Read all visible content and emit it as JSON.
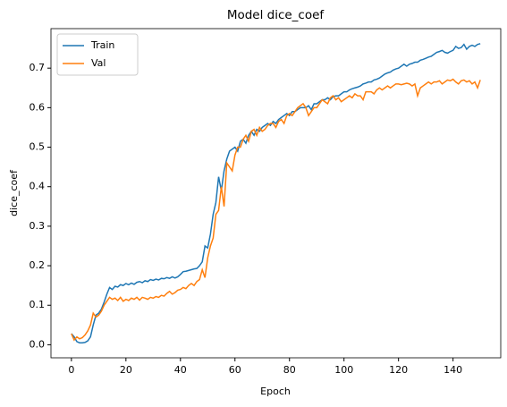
{
  "chart_data": {
    "type": "line",
    "title": "Model dice_coef",
    "xlabel": "Epoch",
    "ylabel": "dice_coef",
    "legend": "upper left",
    "x": [
      0,
      1,
      2,
      3,
      4,
      5,
      6,
      7,
      8,
      9,
      10,
      11,
      12,
      13,
      14,
      15,
      16,
      17,
      18,
      19,
      20,
      21,
      22,
      23,
      24,
      25,
      26,
      27,
      28,
      29,
      30,
      31,
      32,
      33,
      34,
      35,
      36,
      37,
      38,
      39,
      40,
      41,
      42,
      43,
      44,
      45,
      46,
      47,
      48,
      49,
      50,
      51,
      52,
      53,
      54,
      55,
      56,
      57,
      58,
      59,
      60,
      61,
      62,
      63,
      64,
      65,
      66,
      67,
      68,
      69,
      70,
      71,
      72,
      73,
      74,
      75,
      76,
      77,
      78,
      79,
      80,
      81,
      82,
      83,
      84,
      85,
      86,
      87,
      88,
      89,
      90,
      91,
      92,
      93,
      94,
      95,
      96,
      97,
      98,
      99,
      100,
      101,
      102,
      103,
      104,
      105,
      106,
      107,
      108,
      109,
      110,
      111,
      112,
      113,
      114,
      115,
      116,
      117,
      118,
      119,
      120,
      121,
      122,
      123,
      124,
      125,
      126,
      127,
      128,
      129,
      130,
      131,
      132,
      133,
      134,
      135,
      136,
      137,
      138,
      139,
      140,
      141,
      142,
      143,
      144,
      145,
      146,
      147,
      148,
      149,
      150
    ],
    "series": [
      {
        "name": "Train",
        "color": "#1f77b4",
        "values": [
          0.028,
          0.02,
          0.008,
          0.005,
          0.005,
          0.006,
          0.01,
          0.02,
          0.05,
          0.075,
          0.08,
          0.09,
          0.108,
          0.128,
          0.145,
          0.14,
          0.148,
          0.146,
          0.152,
          0.15,
          0.155,
          0.152,
          0.156,
          0.153,
          0.158,
          0.16,
          0.157,
          0.162,
          0.16,
          0.165,
          0.163,
          0.166,
          0.164,
          0.168,
          0.167,
          0.17,
          0.168,
          0.172,
          0.169,
          0.172,
          0.178,
          0.185,
          0.186,
          0.188,
          0.19,
          0.192,
          0.193,
          0.2,
          0.21,
          0.25,
          0.245,
          0.28,
          0.33,
          0.36,
          0.425,
          0.39,
          0.44,
          0.47,
          0.49,
          0.495,
          0.5,
          0.49,
          0.515,
          0.52,
          0.51,
          0.53,
          0.54,
          0.53,
          0.545,
          0.54,
          0.55,
          0.555,
          0.56,
          0.555,
          0.565,
          0.56,
          0.57,
          0.575,
          0.58,
          0.585,
          0.58,
          0.59,
          0.59,
          0.595,
          0.6,
          0.6,
          0.6,
          0.605,
          0.595,
          0.61,
          0.61,
          0.615,
          0.62,
          0.62,
          0.625,
          0.62,
          0.628,
          0.63,
          0.63,
          0.635,
          0.64,
          0.64,
          0.645,
          0.648,
          0.65,
          0.652,
          0.655,
          0.66,
          0.662,
          0.665,
          0.665,
          0.67,
          0.672,
          0.675,
          0.68,
          0.685,
          0.688,
          0.69,
          0.695,
          0.698,
          0.7,
          0.705,
          0.71,
          0.705,
          0.71,
          0.712,
          0.715,
          0.715,
          0.72,
          0.722,
          0.725,
          0.728,
          0.73,
          0.735,
          0.74,
          0.742,
          0.745,
          0.74,
          0.738,
          0.742,
          0.745,
          0.755,
          0.75,
          0.752,
          0.76,
          0.748,
          0.755,
          0.758,
          0.755,
          0.76,
          0.762
        ]
      },
      {
        "name": "Val",
        "color": "#ff7f0e",
        "values": [
          0.028,
          0.012,
          0.02,
          0.015,
          0.018,
          0.025,
          0.035,
          0.05,
          0.08,
          0.07,
          0.075,
          0.085,
          0.1,
          0.11,
          0.12,
          0.115,
          0.118,
          0.112,
          0.12,
          0.11,
          0.115,
          0.112,
          0.118,
          0.115,
          0.12,
          0.113,
          0.12,
          0.118,
          0.115,
          0.12,
          0.118,
          0.122,
          0.12,
          0.125,
          0.123,
          0.13,
          0.135,
          0.128,
          0.132,
          0.138,
          0.14,
          0.145,
          0.142,
          0.15,
          0.155,
          0.15,
          0.16,
          0.165,
          0.19,
          0.17,
          0.22,
          0.25,
          0.27,
          0.33,
          0.34,
          0.4,
          0.35,
          0.46,
          0.45,
          0.44,
          0.48,
          0.5,
          0.5,
          0.52,
          0.53,
          0.515,
          0.54,
          0.545,
          0.53,
          0.55,
          0.54,
          0.545,
          0.555,
          0.56,
          0.56,
          0.55,
          0.565,
          0.57,
          0.56,
          0.58,
          0.585,
          0.58,
          0.59,
          0.6,
          0.605,
          0.61,
          0.6,
          0.58,
          0.59,
          0.6,
          0.6,
          0.61,
          0.62,
          0.615,
          0.61,
          0.625,
          0.63,
          0.62,
          0.625,
          0.615,
          0.62,
          0.625,
          0.63,
          0.625,
          0.635,
          0.63,
          0.63,
          0.62,
          0.64,
          0.64,
          0.64,
          0.635,
          0.645,
          0.65,
          0.645,
          0.65,
          0.655,
          0.65,
          0.655,
          0.66,
          0.66,
          0.658,
          0.66,
          0.662,
          0.66,
          0.655,
          0.66,
          0.63,
          0.65,
          0.655,
          0.66,
          0.665,
          0.66,
          0.665,
          0.665,
          0.668,
          0.66,
          0.665,
          0.67,
          0.668,
          0.672,
          0.665,
          0.66,
          0.668,
          0.67,
          0.665,
          0.668,
          0.66,
          0.665,
          0.65,
          0.67
        ]
      }
    ],
    "xlim": [
      -7.5,
      157.5
    ],
    "ylim": [
      -0.033,
      0.8
    ],
    "xticks": [
      0,
      20,
      40,
      60,
      80,
      100,
      120,
      140
    ],
    "yticks": [
      {
        "value": 0,
        "label": "0.0"
      },
      0.1,
      0.2,
      0.3,
      0.4,
      0.5,
      0.6,
      0.7
    ]
  }
}
